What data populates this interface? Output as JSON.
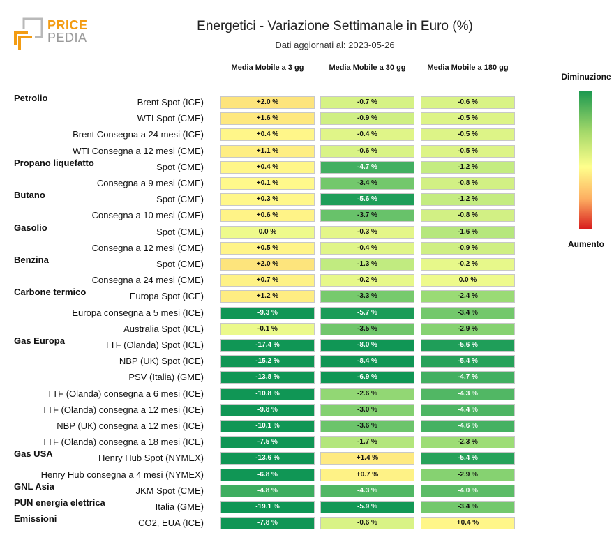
{
  "logo": {
    "text_top": "PRICE",
    "text_bottom": "PEDIA",
    "colors": {
      "orange": "#f39c12",
      "gray": "#9a9a9a"
    }
  },
  "chart_data": {
    "type": "table",
    "title": "Energetici - Variazione Settimanale in Euro (%)",
    "subtitle": "Dati aggiornati al: 2023-05-26",
    "columns": [
      "Media Mobile a 3 gg",
      "Media Mobile a 30 gg",
      "Media Mobile a 180 gg"
    ],
    "legend": {
      "top": "Diminuzione",
      "bottom": "Aumento",
      "colors": [
        "#1a9850",
        "#a6d96a",
        "#ffff8c",
        "#fdae61",
        "#d7191c"
      ]
    },
    "rows": [
      {
        "category": "Petrolio",
        "label": "Brent Spot (ICE)",
        "values": [
          "+2.0 %",
          "-0.7 %",
          "-0.6 %"
        ]
      },
      {
        "category": "",
        "label": "WTI Spot (CME)",
        "values": [
          "+1.6 %",
          "-0.9 %",
          "-0.5 %"
        ]
      },
      {
        "category": "",
        "label": "Brent Consegna a 24 mesi (ICE)",
        "values": [
          "+0.4 %",
          "-0.4 %",
          "-0.5 %"
        ]
      },
      {
        "category": "",
        "label": "WTI Consegna a 12 mesi (CME)",
        "values": [
          "+1.1 %",
          "-0.6 %",
          "-0.5 %"
        ]
      },
      {
        "category": "Propano liquefatto",
        "label": "Spot (CME)",
        "values": [
          "+0.4 %",
          "-4.7 %",
          "-1.2 %"
        ]
      },
      {
        "category": "",
        "label": "Consegna a 9 mesi (CME)",
        "values": [
          "+0.1 %",
          "-3.4 %",
          "-0.8 %"
        ]
      },
      {
        "category": "Butano",
        "label": "Spot (CME)",
        "values": [
          "+0.3 %",
          "-5.6 %",
          "-1.2 %"
        ]
      },
      {
        "category": "",
        "label": "Consegna a 10 mesi (CME)",
        "values": [
          "+0.6 %",
          "-3.7 %",
          "-0.8 %"
        ]
      },
      {
        "category": "Gasolio",
        "label": "Spot (CME)",
        "values": [
          "0.0 %",
          "-0.3 %",
          "-1.6 %"
        ]
      },
      {
        "category": "",
        "label": "Consegna a 12 mesi (CME)",
        "values": [
          "+0.5 %",
          "-0.4 %",
          "-0.9 %"
        ]
      },
      {
        "category": "Benzina",
        "label": "Spot (CME)",
        "values": [
          "+2.0 %",
          "-1.3 %",
          "-0.2 %"
        ]
      },
      {
        "category": "",
        "label": "Consegna a 24 mesi (CME)",
        "values": [
          "+0.7 %",
          "-0.2 %",
          "0.0 %"
        ]
      },
      {
        "category": "Carbone termico",
        "label": "Europa Spot (ICE)",
        "values": [
          "+1.2 %",
          "-3.3 %",
          "-2.4 %"
        ]
      },
      {
        "category": "",
        "label": "Europa consegna a 5 mesi (ICE)",
        "values": [
          "-9.3 %",
          "-5.7 %",
          "-3.4 %"
        ]
      },
      {
        "category": "",
        "label": "Australia Spot (ICE)",
        "values": [
          "-0.1 %",
          "-3.5 %",
          "-2.9 %"
        ]
      },
      {
        "category": "Gas Europa",
        "label": "TTF (Olanda) Spot (ICE)",
        "values": [
          "-17.4 %",
          "-8.0 %",
          "-5.6 %"
        ]
      },
      {
        "category": "",
        "label": "NBP (UK) Spot (ICE)",
        "values": [
          "-15.2 %",
          "-8.4 %",
          "-5.4 %"
        ]
      },
      {
        "category": "",
        "label": "PSV (Italia) (GME)",
        "values": [
          "-13.8 %",
          "-6.9 %",
          "-4.7 %"
        ]
      },
      {
        "category": "",
        "label": "TTF (Olanda) consegna a 6 mesi (ICE)",
        "values": [
          "-10.8 %",
          "-2.6 %",
          "-4.3 %"
        ]
      },
      {
        "category": "",
        "label": "TTF (Olanda) consegna a 12 mesi (ICE)",
        "values": [
          "-9.8 %",
          "-3.0 %",
          "-4.4 %"
        ]
      },
      {
        "category": "",
        "label": "NBP (UK) consegna a 12 mesi (ICE)",
        "values": [
          "-10.1 %",
          "-3.6 %",
          "-4.6 %"
        ]
      },
      {
        "category": "",
        "label": "TTF (Olanda) consegna a 18 mesi (ICE)",
        "values": [
          "-7.5 %",
          "-1.7 %",
          "-2.3 %"
        ]
      },
      {
        "category": "Gas USA",
        "label": "Henry Hub Spot (NYMEX)",
        "values": [
          "-13.6 %",
          "+1.4 %",
          "-5.4 %"
        ]
      },
      {
        "category": "",
        "label": "Henry Hub consegna a 4 mesi (NYMEX)",
        "values": [
          "-6.8 %",
          "+0.7 %",
          "-2.9 %"
        ]
      },
      {
        "category": "GNL Asia",
        "label": "JKM Spot (CME)",
        "values": [
          "-4.8 %",
          "-4.3 %",
          "-4.0 %"
        ]
      },
      {
        "category": "PUN energia elettrica",
        "label": "Italia (GME)",
        "values": [
          "-19.1 %",
          "-5.9 %",
          "-3.4 %"
        ]
      },
      {
        "category": "Emissioni",
        "label": "CO2, EUA (ICE)",
        "values": [
          "-7.8 %",
          "-0.6 %",
          "+0.4 %"
        ]
      }
    ]
  }
}
